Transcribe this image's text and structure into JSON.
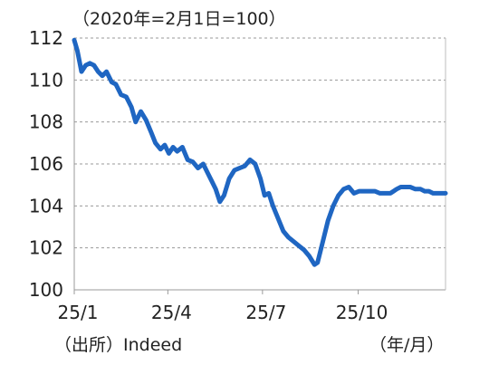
{
  "chart_data": {
    "type": "line",
    "title": "（2020年=2月1日=100）",
    "source": "（出所）Indeed",
    "unit_label": "（年/月）",
    "xlabel": "",
    "ylabel": "",
    "x_ticks": [
      "25/1",
      "25/4",
      "25/7",
      "25/10"
    ],
    "y_ticks": [
      "100",
      "102",
      "104",
      "106",
      "108",
      "110",
      "112"
    ],
    "ylim": [
      100,
      112
    ],
    "grid": "horizontal dashed",
    "series_color": "#1f66c2",
    "series": [
      {
        "name": "",
        "x": [
          "2025-01-01",
          "2025-01-04",
          "2025-01-08",
          "2025-01-12",
          "2025-01-16",
          "2025-01-20",
          "2025-01-24",
          "2025-01-28",
          "2025-02-01",
          "2025-02-06",
          "2025-02-10",
          "2025-02-15",
          "2025-02-20",
          "2025-02-25",
          "2025-03-01",
          "2025-03-06",
          "2025-03-11",
          "2025-03-16",
          "2025-03-20",
          "2025-03-25",
          "2025-03-29",
          "2025-04-02",
          "2025-04-06",
          "2025-04-10",
          "2025-04-15",
          "2025-04-20",
          "2025-04-25",
          "2025-04-30",
          "2025-05-05",
          "2025-05-09",
          "2025-05-13",
          "2025-05-17",
          "2025-05-21",
          "2025-05-25",
          "2025-05-30",
          "2025-06-04",
          "2025-06-09",
          "2025-06-14",
          "2025-06-19",
          "2025-06-24",
          "2025-06-29",
          "2025-07-03",
          "2025-07-07",
          "2025-07-11",
          "2025-07-16",
          "2025-07-21",
          "2025-07-26",
          "2025-07-31",
          "2025-08-05",
          "2025-08-10",
          "2025-08-15",
          "2025-08-20",
          "2025-08-23",
          "2025-08-28",
          "2025-09-02",
          "2025-09-07",
          "2025-09-12",
          "2025-09-17",
          "2025-09-22",
          "2025-09-27",
          "2025-10-02",
          "2025-10-07",
          "2025-10-12",
          "2025-10-17",
          "2025-10-22",
          "2025-10-27",
          "2025-11-01",
          "2025-11-04",
          "2025-11-07",
          "2025-11-11",
          "2025-11-15",
          "2025-11-20",
          "2025-11-25",
          "2025-11-30",
          "2025-12-04",
          "2025-12-08",
          "2025-12-12",
          "2025-12-16",
          "2025-12-20",
          "2025-12-24"
        ],
        "values": [
          111.9,
          111.4,
          110.4,
          110.7,
          110.8,
          110.7,
          110.4,
          110.2,
          110.4,
          109.9,
          109.8,
          109.3,
          109.2,
          108.7,
          108.0,
          108.5,
          108.1,
          107.5,
          107.0,
          106.7,
          106.9,
          106.5,
          106.8,
          106.6,
          106.8,
          106.2,
          106.1,
          105.8,
          106.0,
          105.6,
          105.2,
          104.8,
          104.2,
          104.5,
          105.3,
          105.7,
          105.8,
          105.9,
          106.2,
          106.0,
          105.3,
          104.5,
          104.6,
          104.0,
          103.4,
          102.8,
          102.5,
          102.3,
          102.1,
          101.9,
          101.6,
          101.2,
          101.3,
          102.3,
          103.3,
          104.0,
          104.5,
          104.8,
          104.9,
          104.6,
          104.7,
          104.7,
          104.7,
          104.7,
          104.6,
          104.6,
          104.6,
          104.7,
          104.8,
          104.9,
          104.9,
          104.9,
          104.8,
          104.8,
          104.7,
          104.7,
          104.6,
          104.6,
          104.6,
          104.6
        ]
      }
    ]
  }
}
